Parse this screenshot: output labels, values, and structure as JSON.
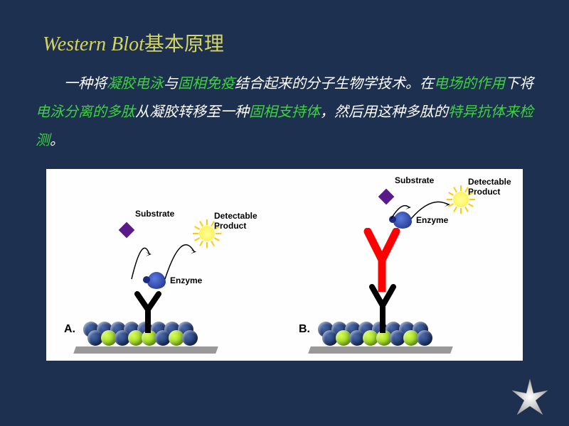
{
  "title": {
    "en": "Western Blot",
    "cn": "基本原理"
  },
  "paragraph": {
    "segments": [
      {
        "text": "一种将",
        "hl": false
      },
      {
        "text": "凝胶电泳",
        "hl": true
      },
      {
        "text": "与",
        "hl": false
      },
      {
        "text": "固相免疫",
        "hl": true
      },
      {
        "text": "结合起来的分子生物学技术。在",
        "hl": false
      },
      {
        "text": "电场的作用",
        "hl": true
      },
      {
        "text": "下将",
        "hl": false
      },
      {
        "text": "电泳分离的多肽",
        "hl": true
      },
      {
        "text": "从凝胶转移至一种",
        "hl": false
      },
      {
        "text": "固相支持体",
        "hl": true
      },
      {
        "text": "，然后用这种多肽的",
        "hl": false
      },
      {
        "text": "特异抗体来检测",
        "hl": true
      },
      {
        "text": "。",
        "hl": false
      }
    ]
  },
  "diagram": {
    "panels": [
      {
        "id": "A",
        "label": "A.",
        "secondary_antibody": false
      },
      {
        "id": "B",
        "label": "B.",
        "secondary_antibody": true
      }
    ],
    "labels": {
      "substrate": "Substrate",
      "detectable_product": "Detectable\nProduct",
      "enzyme": "Enzyme"
    },
    "colors": {
      "background": "#1e3050",
      "title_color": "#d4d462",
      "body_white": "#ffffff",
      "highlight_green": "#3fd23f",
      "diagram_bg": "#fefefe",
      "bead_navy": "#0a1a4a",
      "bead_green": "#8acc1a",
      "antibody_primary": "#000000",
      "antibody_secondary": "#ff0000",
      "enzyme_blue": "#1a2a80",
      "substrate_purple": "#5a1a8a",
      "product_yellow": "#ffee44",
      "star_color": "#ffffff"
    },
    "font_sizes": {
      "title": 28,
      "body": 20,
      "diagram_label": 12,
      "panel_label": 16
    }
  }
}
